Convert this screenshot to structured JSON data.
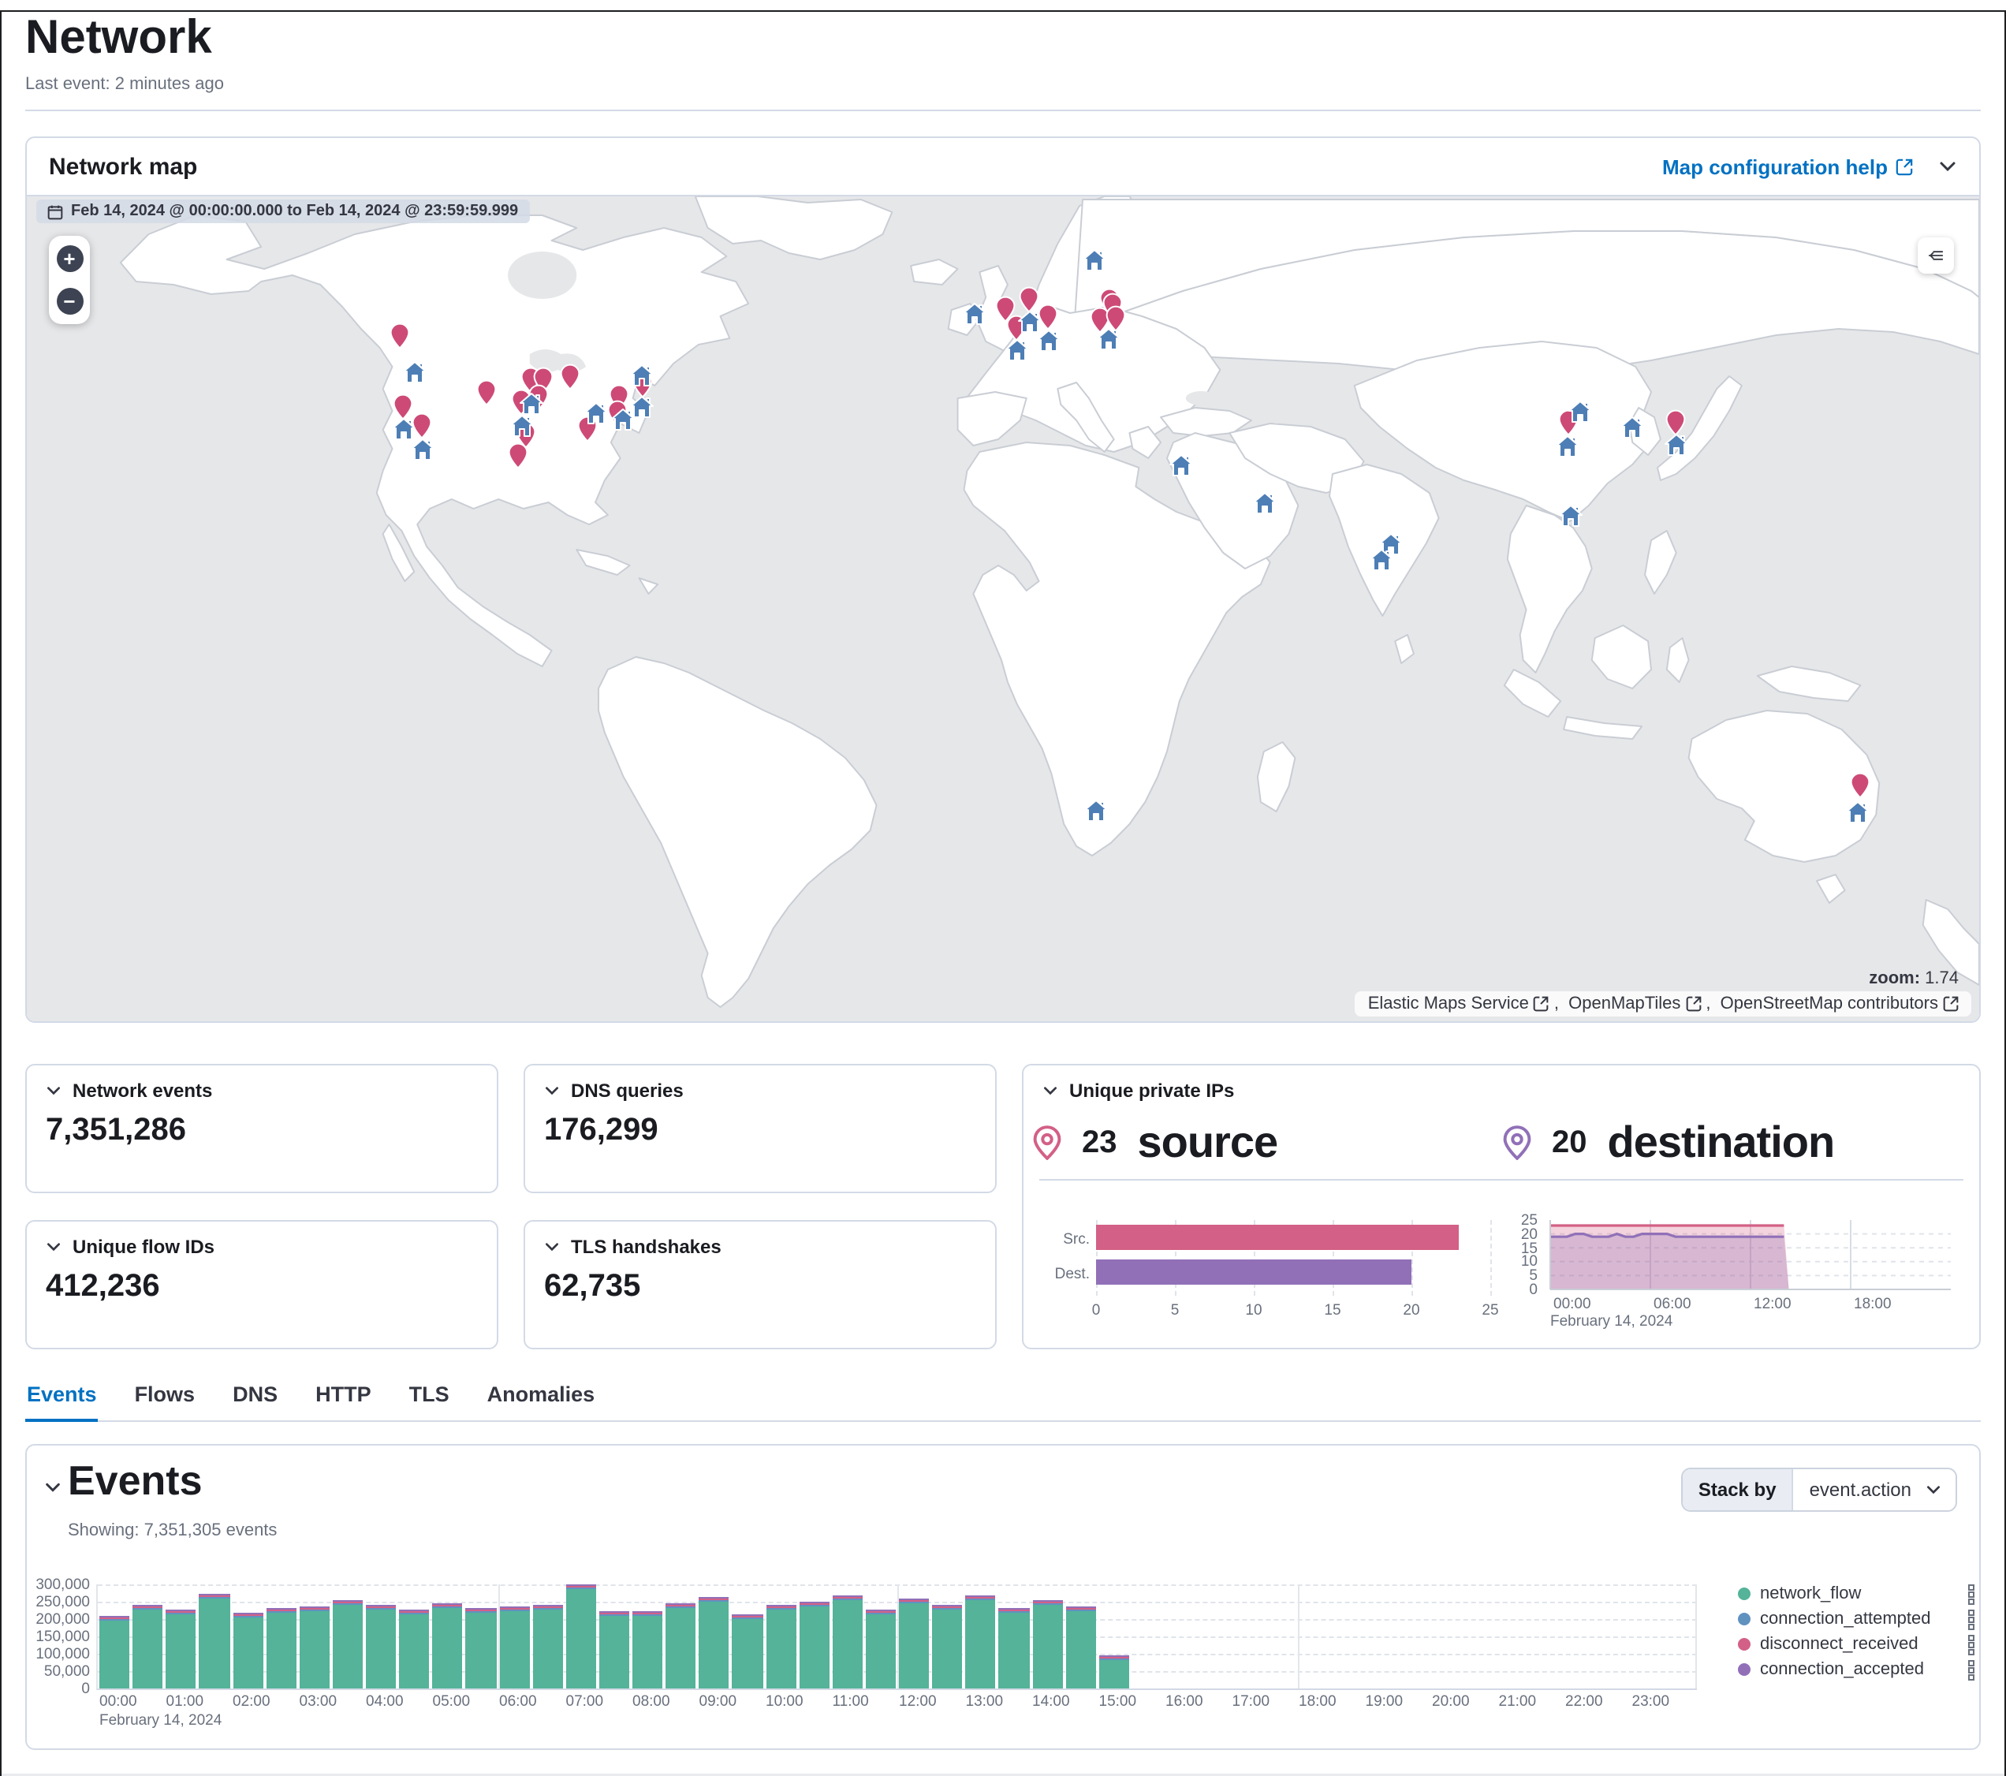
{
  "page": {
    "title": "Network",
    "last_event": "Last event: 2 minutes ago"
  },
  "map_panel": {
    "title": "Network map",
    "help_link": "Map configuration help",
    "date_range": "Feb 14, 2024 @ 00:00:00.000 to Feb 14, 2024 @ 23:59:59.999",
    "zoom_label": "zoom:",
    "zoom_value": "1.74",
    "zoom_in": "+",
    "zoom_out": "−",
    "attribution": [
      "Elastic Maps Service",
      "OpenMapTiles",
      "OpenStreetMap contributors"
    ],
    "marker_colors": {
      "pin": "#CD4A77",
      "home": "#4D7EB5"
    },
    "markers": [
      {
        "t": "pin",
        "x": 239,
        "y": 96
      },
      {
        "t": "pin",
        "x": 294,
        "y": 132
      },
      {
        "t": "pin",
        "x": 323,
        "y": 124
      },
      {
        "t": "pin",
        "x": 331,
        "y": 124
      },
      {
        "t": "pin",
        "x": 348,
        "y": 122
      },
      {
        "t": "pin",
        "x": 317,
        "y": 138
      },
      {
        "t": "pin",
        "x": 328,
        "y": 135
      },
      {
        "t": "pin",
        "x": 241,
        "y": 141
      },
      {
        "t": "pin",
        "x": 253,
        "y": 153
      },
      {
        "t": "pin",
        "x": 320,
        "y": 159
      },
      {
        "t": "pin",
        "x": 315,
        "y": 172
      },
      {
        "t": "pin",
        "x": 359,
        "y": 155
      },
      {
        "t": "pin",
        "x": 379,
        "y": 135
      },
      {
        "t": "pin",
        "x": 394,
        "y": 127
      },
      {
        "t": "pin",
        "x": 378,
        "y": 145
      },
      {
        "t": "pin",
        "x": 627,
        "y": 79
      },
      {
        "t": "pin",
        "x": 642,
        "y": 73
      },
      {
        "t": "pin",
        "x": 634,
        "y": 91
      },
      {
        "t": "pin",
        "x": 654,
        "y": 84
      },
      {
        "t": "pin",
        "x": 693,
        "y": 74
      },
      {
        "t": "pin",
        "x": 695,
        "y": 77
      },
      {
        "t": "pin",
        "x": 687,
        "y": 86
      },
      {
        "t": "pin",
        "x": 697,
        "y": 85
      },
      {
        "t": "pin",
        "x": 987,
        "y": 151
      },
      {
        "t": "pin",
        "x": 1056,
        "y": 151
      },
      {
        "t": "pin",
        "x": 1174,
        "y": 381
      },
      {
        "t": "home",
        "x": 248,
        "y": 111
      },
      {
        "t": "home",
        "x": 323,
        "y": 131
      },
      {
        "t": "home",
        "x": 317,
        "y": 145
      },
      {
        "t": "home",
        "x": 241,
        "y": 147
      },
      {
        "t": "home",
        "x": 253,
        "y": 160
      },
      {
        "t": "home",
        "x": 364,
        "y": 137
      },
      {
        "t": "home",
        "x": 394,
        "y": 113
      },
      {
        "t": "home",
        "x": 394,
        "y": 133
      },
      {
        "t": "home",
        "x": 382,
        "y": 141
      },
      {
        "t": "home",
        "x": 607,
        "y": 74
      },
      {
        "t": "home",
        "x": 642,
        "y": 79
      },
      {
        "t": "home",
        "x": 634,
        "y": 97
      },
      {
        "t": "home",
        "x": 654,
        "y": 91
      },
      {
        "t": "home",
        "x": 684,
        "y": 40
      },
      {
        "t": "home",
        "x": 693,
        "y": 90
      },
      {
        "t": "home",
        "x": 739,
        "y": 170
      },
      {
        "t": "home",
        "x": 793,
        "y": 194
      },
      {
        "t": "home",
        "x": 873,
        "y": 220
      },
      {
        "t": "home",
        "x": 867,
        "y": 230
      },
      {
        "t": "home",
        "x": 988,
        "y": 202
      },
      {
        "t": "home",
        "x": 995,
        "y": 136
      },
      {
        "t": "home",
        "x": 986,
        "y": 158
      },
      {
        "t": "home",
        "x": 1028,
        "y": 146
      },
      {
        "t": "home",
        "x": 1056,
        "y": 157
      },
      {
        "t": "home",
        "x": 685,
        "y": 389
      },
      {
        "t": "home",
        "x": 1172,
        "y": 390
      }
    ]
  },
  "stats": [
    {
      "label": "Network events",
      "value": "7,351,286"
    },
    {
      "label": "DNS queries",
      "value": "176,299"
    },
    {
      "label": "Unique flow IDs",
      "value": "412,236"
    },
    {
      "label": "TLS handshakes",
      "value": "62,735"
    }
  ],
  "unique_ips": {
    "title": "Unique private IPs",
    "source_count": "23",
    "source_label": "source",
    "source_color": "#D36086",
    "dest_count": "20",
    "dest_label": "destination",
    "dest_color": "#9170B8"
  },
  "tabs": [
    {
      "label": "Events",
      "active": true
    },
    {
      "label": "Flows",
      "active": false
    },
    {
      "label": "DNS",
      "active": false
    },
    {
      "label": "HTTP",
      "active": false
    },
    {
      "label": "TLS",
      "active": false
    },
    {
      "label": "Anomalies",
      "active": false
    }
  ],
  "events_panel": {
    "title": "Events",
    "showing": "Showing: 7,351,305 events",
    "stack_by_label": "Stack by",
    "stack_by_value": "event.action"
  },
  "chart_data": [
    {
      "id": "events_histogram",
      "type": "bar",
      "stacked": true,
      "legend_position": "right",
      "x_sub_label": "February 14, 2024",
      "x_tick_labels": [
        "00:00",
        "01:00",
        "02:00",
        "03:00",
        "04:00",
        "05:00",
        "06:00",
        "07:00",
        "08:00",
        "09:00",
        "10:00",
        "11:00",
        "12:00",
        "13:00",
        "14:00",
        "15:00",
        "16:00",
        "17:00",
        "18:00",
        "19:00",
        "20:00",
        "21:00",
        "22:00",
        "23:00"
      ],
      "x_hours_total": 24,
      "bar_interval_minutes": 30,
      "ylim": [
        0,
        300000
      ],
      "y_tick_labels": [
        "0",
        "50,000",
        "100,000",
        "150,000",
        "200,000",
        "250,000",
        "300,000"
      ],
      "categories": [
        "00:00",
        "00:30",
        "01:00",
        "01:30",
        "02:00",
        "02:30",
        "03:00",
        "03:30",
        "04:00",
        "04:30",
        "05:00",
        "05:30",
        "06:00",
        "06:30",
        "07:00",
        "07:30",
        "08:00",
        "08:30",
        "09:00",
        "09:30",
        "10:00",
        "10:30",
        "11:00",
        "11:30",
        "12:00",
        "12:30",
        "13:00",
        "13:30",
        "14:00",
        "14:30",
        "15:00"
      ],
      "series": [
        {
          "name": "network_flow",
          "color": "#54B399",
          "values": [
            197000,
            228000,
            213000,
            259000,
            205000,
            217000,
            221000,
            239000,
            226000,
            214000,
            233000,
            219000,
            223000,
            226000,
            286000,
            209000,
            211000,
            233000,
            249000,
            201000,
            228000,
            236000,
            254000,
            212000,
            246000,
            226000,
            256000,
            218000,
            241000,
            224000,
            82000
          ]
        },
        {
          "name": "connection_attempted",
          "color": "#6092C0",
          "values": [
            3000,
            3000,
            3000,
            3000,
            3000,
            3000,
            3000,
            3000,
            3000,
            3000,
            3000,
            3000,
            3000,
            3000,
            3000,
            3000,
            3000,
            3000,
            3000,
            3000,
            3000,
            3000,
            3000,
            3000,
            3000,
            3000,
            3000,
            3000,
            3000,
            3000,
            3000
          ]
        },
        {
          "name": "disconnect_received",
          "color": "#D36086",
          "values": [
            5000,
            5000,
            5000,
            5000,
            5000,
            5000,
            5000,
            5000,
            5000,
            5000,
            5000,
            5000,
            5000,
            5000,
            5000,
            5000,
            5000,
            5000,
            5000,
            5000,
            5000,
            5000,
            5000,
            5000,
            5000,
            5000,
            5000,
            5000,
            5000,
            5000,
            5000
          ]
        },
        {
          "name": "connection_accepted",
          "color": "#9170B8",
          "values": [
            4000,
            4000,
            4000,
            4000,
            4000,
            4000,
            4000,
            4000,
            4000,
            4000,
            4000,
            4000,
            4000,
            4000,
            4000,
            4000,
            4000,
            4000,
            4000,
            4000,
            4000,
            4000,
            4000,
            4000,
            4000,
            4000,
            4000,
            4000,
            4000,
            4000,
            4000
          ]
        }
      ]
    },
    {
      "id": "unique_ips_bar",
      "type": "bar",
      "orientation": "horizontal",
      "categories": [
        "Src.",
        "Dest."
      ],
      "values": [
        23,
        20
      ],
      "colors": [
        "#D36086",
        "#9170B8"
      ],
      "xlim": [
        0,
        25
      ],
      "x_ticks": [
        "0",
        "5",
        "10",
        "15",
        "20",
        "25"
      ]
    },
    {
      "id": "unique_ips_area",
      "type": "area",
      "x_hours": [
        0,
        24
      ],
      "step_hours": 0.5,
      "x_ticks": [
        "00:00",
        "06:00",
        "12:00",
        "18:00"
      ],
      "x_tick_hours": [
        0,
        6,
        12,
        18
      ],
      "x_sub_label": "February 14, 2024",
      "ylim": [
        0,
        25
      ],
      "y_ticks": [
        "25",
        "20",
        "15",
        "10",
        "5",
        "0"
      ],
      "series": [
        {
          "name": "source",
          "color": "#D36086",
          "end_hour": 14.3,
          "values": [
            23,
            23,
            23,
            23,
            23,
            23,
            23,
            23,
            23,
            23,
            23,
            23,
            23,
            23,
            23,
            23,
            23,
            23,
            23,
            23,
            23,
            23,
            23,
            23,
            23,
            23,
            23,
            23,
            23
          ]
        },
        {
          "name": "destination",
          "color": "#9170B8",
          "end_hour": 14.3,
          "values": [
            19,
            19,
            19,
            20,
            20,
            19,
            19,
            19,
            20,
            19,
            19,
            20,
            20,
            20,
            20,
            19,
            19,
            19,
            19,
            19,
            19,
            19,
            19,
            19,
            19,
            19,
            19,
            19,
            19
          ]
        }
      ]
    }
  ]
}
